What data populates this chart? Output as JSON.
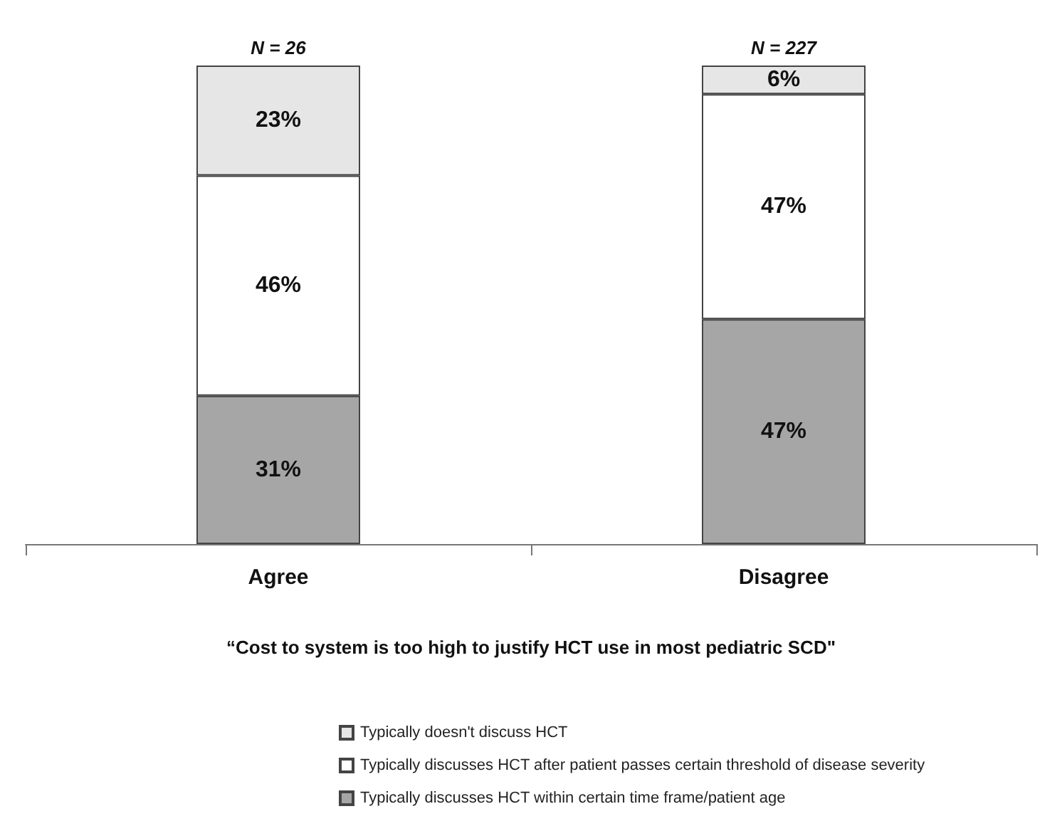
{
  "chart_data": {
    "type": "bar",
    "stacked": true,
    "xlabel": "“Cost to system is too high to justify HCT use in most pediatric SCD\"",
    "categories": [
      "Agree",
      "Disagree"
    ],
    "series": [
      {
        "name": "Typically discusses HCT within certain time frame/patient age",
        "color": "#a6a6a6",
        "values": [
          31,
          47
        ],
        "value_labels": [
          "31%",
          "47%"
        ]
      },
      {
        "name": "Typically discusses HCT after patient passes certain threshold of disease severity",
        "color": "#ffffff",
        "values": [
          46,
          47
        ],
        "value_labels": [
          "46%",
          "47%"
        ]
      },
      {
        "name": "Typically doesn't discuss HCT",
        "color": "#e6e6e6",
        "values": [
          23,
          6
        ],
        "value_labels": [
          "23%",
          "6%"
        ]
      }
    ],
    "annotations": [
      {
        "text": "N = 26",
        "x": "Agree",
        "y": 100
      },
      {
        "text": "N = 227",
        "x": "Disagree",
        "y": 100
      }
    ],
    "legend": "bottom",
    "grid": false
  }
}
